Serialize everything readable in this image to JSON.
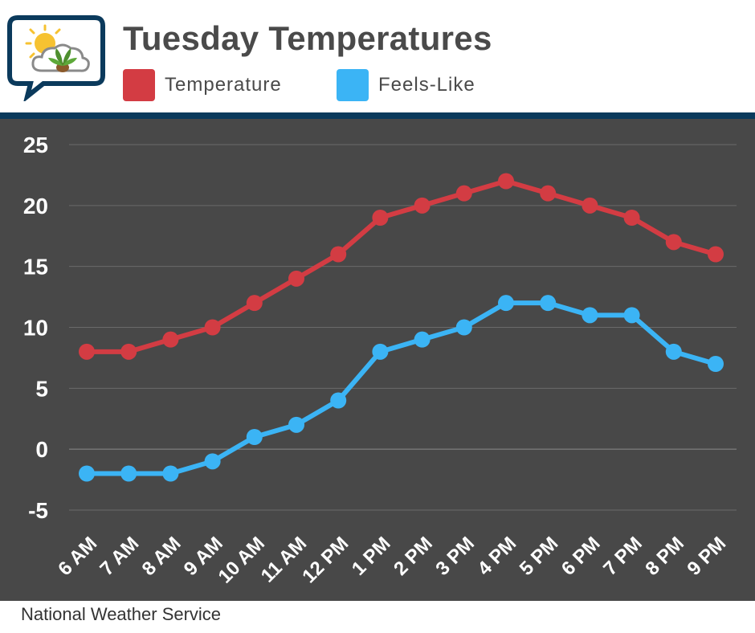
{
  "header": {
    "title": "Tuesday Temperatures"
  },
  "colors": {
    "temperature": "#d33c43",
    "feels_like": "#3bb4f5",
    "panel": "#484848",
    "divider": "#0b3a5c"
  },
  "footer": {
    "source": "National Weather Service"
  },
  "chart_data": {
    "type": "line",
    "title": "Tuesday Temperatures",
    "xlabel": "",
    "ylabel": "",
    "categories": [
      "6 AM",
      "7 AM",
      "8 AM",
      "9 AM",
      "10 AM",
      "11 AM",
      "12 PM",
      "1 PM",
      "2 PM",
      "3 PM",
      "4 PM",
      "5 PM",
      "6 PM",
      "7 PM",
      "8 PM",
      "9 PM"
    ],
    "series": [
      {
        "name": "Temperature",
        "color": "#d33c43",
        "values": [
          8,
          8,
          9,
          10,
          12,
          14,
          16,
          19,
          20,
          21,
          22,
          21,
          20,
          19,
          17,
          16
        ]
      },
      {
        "name": "Feels-Like",
        "color": "#3bb4f5",
        "values": [
          -2,
          -2,
          -2,
          -1,
          1,
          2,
          4,
          8,
          9,
          10,
          12,
          12,
          11,
          11,
          8,
          7
        ]
      }
    ],
    "ylim": [
      -5,
      25
    ],
    "yticks": [
      25,
      20,
      15,
      10,
      5,
      0,
      -5
    ],
    "grid": true,
    "legend": "top"
  }
}
